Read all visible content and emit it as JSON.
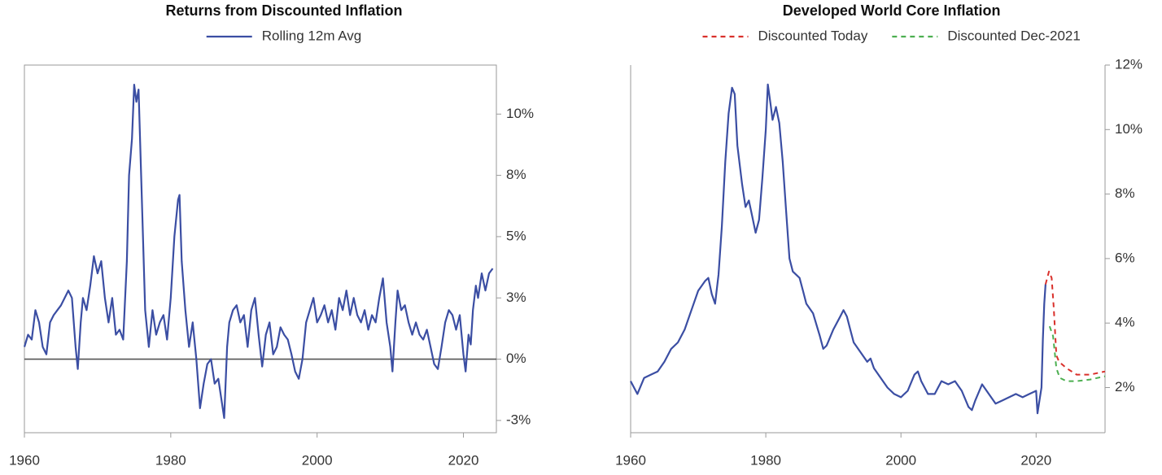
{
  "chart_data": [
    {
      "type": "line",
      "title": "Returns from Discounted Inflation",
      "legend": "top",
      "zero_line": true,
      "frame": "box",
      "xlim": [
        1960,
        2024.5
      ],
      "xticks": [
        1960,
        1980,
        2000,
        2020
      ],
      "ylim": [
        -3,
        12
      ],
      "yticks": [
        {
          "value": -2.5,
          "label": "-3%"
        },
        {
          "value": 0,
          "label": "0%"
        },
        {
          "value": 2.5,
          "label": "3%"
        },
        {
          "value": 5,
          "label": "5%"
        },
        {
          "value": 7.5,
          "label": "8%"
        },
        {
          "value": 10,
          "label": "10%"
        }
      ],
      "series": [
        {
          "name": "Rolling 12m Avg",
          "color": "#3b4ea3",
          "dash": false,
          "x": [
            1960,
            1960.5,
            1961,
            1961.5,
            1962,
            1962.5,
            1963,
            1963.5,
            1964,
            1964.5,
            1965,
            1965.5,
            1966,
            1966.5,
            1967,
            1967.3,
            1967.7,
            1968,
            1968.5,
            1969,
            1969.5,
            1970,
            1970.5,
            1971,
            1971.5,
            1972,
            1972.5,
            1973,
            1973.5,
            1974,
            1974.3,
            1974.7,
            1975,
            1975.3,
            1975.6,
            1976,
            1976.5,
            1977,
            1977.5,
            1978,
            1978.5,
            1979,
            1979.5,
            1980,
            1980.5,
            1981,
            1981.2,
            1981.5,
            1982,
            1982.5,
            1983,
            1983.5,
            1984,
            1984.5,
            1985,
            1985.5,
            1986,
            1986.5,
            1987,
            1987.3,
            1987.7,
            1988,
            1988.5,
            1989,
            1989.5,
            1990,
            1990.5,
            1991,
            1991.5,
            1992,
            1992.5,
            1993,
            1993.5,
            1994,
            1994.5,
            1995,
            1995.5,
            1996,
            1996.5,
            1997,
            1997.5,
            1998,
            1998.5,
            1999,
            1999.5,
            2000,
            2000.5,
            2001,
            2001.5,
            2002,
            2002.5,
            2003,
            2003.5,
            2004,
            2004.5,
            2005,
            2005.5,
            2006,
            2006.5,
            2007,
            2007.5,
            2008,
            2008.5,
            2009,
            2009.5,
            2010,
            2010.3,
            2010.7,
            2011,
            2011.5,
            2012,
            2012.5,
            2013,
            2013.5,
            2014,
            2014.5,
            2015,
            2015.5,
            2016,
            2016.5,
            2017,
            2017.5,
            2018,
            2018.5,
            2019,
            2019.5,
            2020,
            2020.3,
            2020.7,
            2021,
            2021.3,
            2021.7,
            2022,
            2022.5,
            2023,
            2023.5,
            2024
          ],
          "values": [
            0.5,
            1,
            0.8,
            2,
            1.5,
            0.5,
            0.2,
            1.5,
            1.8,
            2,
            2.2,
            2.5,
            2.8,
            2.5,
            0.5,
            -0.4,
            1.5,
            2.5,
            2,
            3,
            4.2,
            3.5,
            4,
            2.5,
            1.5,
            2.5,
            1,
            1.2,
            0.8,
            4,
            7.5,
            9,
            11.2,
            10.5,
            11,
            7,
            2,
            0.5,
            2,
            1,
            1.5,
            1.8,
            0.8,
            2.5,
            5,
            6.5,
            6.7,
            4,
            2,
            0.5,
            1.5,
            0,
            -2,
            -1,
            -0.2,
            0,
            -1,
            -0.8,
            -1.8,
            -2.4,
            0.5,
            1.5,
            2,
            2.2,
            1.5,
            1.8,
            0.5,
            2,
            2.5,
            1,
            -0.3,
            1,
            1.5,
            0.2,
            0.5,
            1.3,
            1,
            0.8,
            0.2,
            -0.5,
            -0.8,
            0,
            1.5,
            2,
            2.5,
            1.5,
            1.8,
            2.2,
            1.5,
            2,
            1.2,
            2.5,
            2,
            2.8,
            1.8,
            2.5,
            1.8,
            1.5,
            2,
            1.2,
            1.8,
            1.5,
            2.5,
            3.3,
            1.5,
            0.5,
            -0.5,
            1.5,
            2.8,
            2,
            2.2,
            1.5,
            1,
            1.5,
            1,
            0.8,
            1.2,
            0.5,
            -0.2,
            -0.4,
            0.5,
            1.5,
            2,
            1.8,
            1.2,
            1.8,
            0.2,
            -0.5,
            1,
            0.6,
            2,
            3,
            2.5,
            3.5,
            2.8,
            3.5,
            3.7
          ]
        }
      ]
    },
    {
      "type": "line",
      "title": "Developed World Core Inflation",
      "legend": "top",
      "zero_line": false,
      "frame": "open",
      "xlim": [
        1960,
        2030.2
      ],
      "xticks": [
        1960,
        1980,
        2000,
        2020
      ],
      "ylim": [
        0.6,
        12
      ],
      "yticks": [
        {
          "value": 2,
          "label": "2%"
        },
        {
          "value": 4,
          "label": "4%"
        },
        {
          "value": 6,
          "label": "6%"
        },
        {
          "value": 8,
          "label": "8%"
        },
        {
          "value": 10,
          "label": "10%"
        },
        {
          "value": 12,
          "label": "12%"
        }
      ],
      "series": [
        {
          "color": "#3b4ea3",
          "dash": false,
          "x": [
            1960,
            1961,
            1962,
            1963,
            1964,
            1965,
            1966,
            1967,
            1968,
            1969,
            1970,
            1971,
            1971.5,
            1972,
            1972.5,
            1973,
            1973.5,
            1974,
            1974.5,
            1975,
            1975.4,
            1975.8,
            1976.5,
            1977,
            1977.5,
            1978,
            1978.5,
            1979,
            1979.5,
            1980,
            1980.3,
            1980.7,
            1981,
            1981.5,
            1982,
            1982.5,
            1983,
            1983.5,
            1984,
            1985,
            1985.5,
            1986,
            1987,
            1988,
            1988.5,
            1989,
            1990,
            1991,
            1991.5,
            1992,
            1992.5,
            1993,
            1994,
            1995,
            1995.5,
            1996,
            1997,
            1998,
            1999,
            2000,
            2000.5,
            2001,
            2002,
            2002.5,
            2003,
            2004,
            2005,
            2006,
            2007,
            2008,
            2009,
            2010,
            2010.5,
            2011,
            2012,
            2013,
            2014,
            2015,
            2016,
            2017,
            2018,
            2019,
            2020,
            2020.2,
            2020.5,
            2020.8,
            2021,
            2021.2,
            2021.4
          ],
          "values": [
            2.2,
            1.8,
            2.3,
            2.4,
            2.5,
            2.8,
            3.2,
            3.4,
            3.8,
            4.4,
            5,
            5.3,
            5.4,
            4.9,
            4.6,
            5.5,
            7,
            9,
            10.5,
            11.3,
            11.1,
            9.5,
            8.3,
            7.6,
            7.8,
            7.3,
            6.8,
            7.2,
            8.5,
            10,
            11.4,
            10.8,
            10.3,
            10.7,
            10.2,
            9,
            7.5,
            6,
            5.6,
            5.4,
            5,
            4.6,
            4.3,
            3.6,
            3.2,
            3.3,
            3.8,
            4.2,
            4.4,
            4.2,
            3.8,
            3.4,
            3.1,
            2.8,
            2.9,
            2.6,
            2.3,
            2,
            1.8,
            1.7,
            1.8,
            1.9,
            2.4,
            2.5,
            2.2,
            1.8,
            1.8,
            2.2,
            2.1,
            2.2,
            1.9,
            1.4,
            1.3,
            1.6,
            2.1,
            1.8,
            1.5,
            1.6,
            1.7,
            1.8,
            1.7,
            1.8,
            1.9,
            1.2,
            1.6,
            2,
            3.5,
            4.6,
            5.2
          ]
        },
        {
          "name": "Discounted Today",
          "color": "#d9302b",
          "dash": true,
          "x": [
            2021.4,
            2021.9,
            2022.3,
            2022.6,
            2023,
            2023.4,
            2024.5,
            2026,
            2028,
            2030.2
          ],
          "values": [
            5.2,
            5.6,
            5.4,
            4.5,
            3,
            2.8,
            2.6,
            2.4,
            2.4,
            2.5
          ]
        },
        {
          "name": "Discounted Dec-2021",
          "color": "#4caf50",
          "dash": true,
          "x": [
            2022,
            2022.5,
            2023,
            2023.5,
            2024.5,
            2026,
            2028,
            2030.2
          ],
          "values": [
            3.9,
            3.6,
            2.6,
            2.3,
            2.2,
            2.2,
            2.25,
            2.35
          ]
        }
      ]
    }
  ]
}
